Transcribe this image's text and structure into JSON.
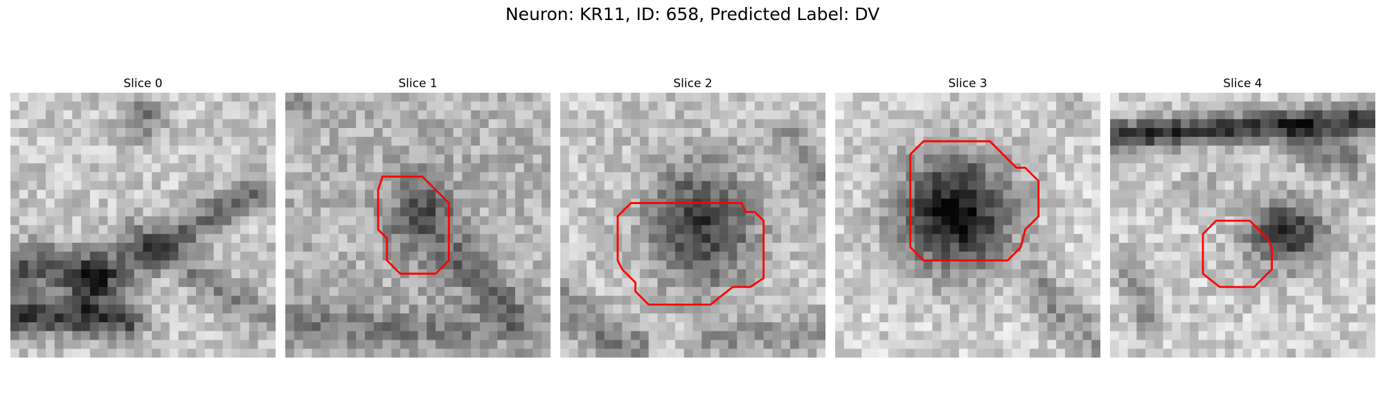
{
  "figure": {
    "title": "Neuron: KR11, ID: 658, Predicted Label: DV"
  },
  "panels": [
    {
      "title": "Slice 0",
      "has_contour": false
    },
    {
      "title": "Slice 1",
      "has_contour": true
    },
    {
      "title": "Slice 2",
      "has_contour": true
    },
    {
      "title": "Slice 3",
      "has_contour": true
    },
    {
      "title": "Slice 4",
      "has_contour": true
    }
  ],
  "colors": {
    "contour": "#ff0000",
    "background": "#ffffff"
  }
}
